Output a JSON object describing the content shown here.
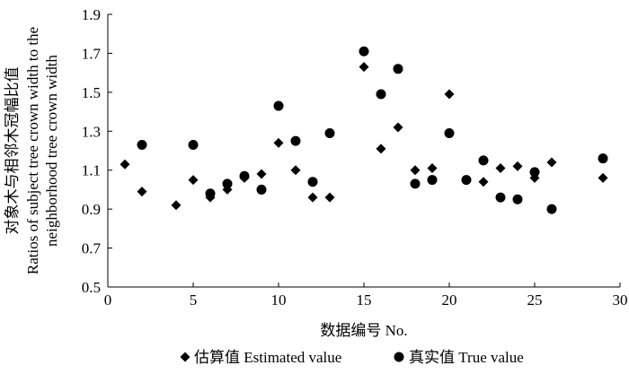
{
  "chart_data": {
    "type": "scatter",
    "xlabel": "数据编号 No.",
    "ylabel_lines": [
      "对象木与相邻木冠幅比值",
      "Ratios of subject tree crown width to the",
      "neighborhood tree crown width"
    ],
    "xlim": [
      0,
      30
    ],
    "ylim": [
      0.5,
      1.9
    ],
    "xticks": [
      "0",
      "5",
      "10",
      "15",
      "20",
      "25",
      "30"
    ],
    "yticks": [
      "0.5",
      "0.7",
      "0.9",
      "1.1",
      "1.3",
      "1.5",
      "1.7",
      "1.9"
    ],
    "grid": false,
    "legend_position": "bottom",
    "series": [
      {
        "name": "估算值  Estimated value",
        "marker": "diamond",
        "x": [
          1,
          2,
          4,
          5,
          6,
          7,
          8,
          9,
          10,
          11,
          12,
          13,
          15,
          16,
          17,
          18,
          19,
          20,
          21,
          22,
          23,
          24,
          25,
          26,
          29
        ],
        "y": [
          1.13,
          0.99,
          0.92,
          1.05,
          0.96,
          1.0,
          1.06,
          1.08,
          1.24,
          1.1,
          0.96,
          0.96,
          1.63,
          1.21,
          1.32,
          1.1,
          1.11,
          1.49,
          1.05,
          1.04,
          1.11,
          1.12,
          1.06,
          1.14,
          1.06
        ]
      },
      {
        "name": "真实值  True value",
        "marker": "circle",
        "x": [
          2,
          5,
          6,
          7,
          8,
          9,
          10,
          11,
          12,
          13,
          15,
          16,
          17,
          18,
          19,
          20,
          21,
          22,
          23,
          24,
          25,
          26,
          29
        ],
        "y": [
          1.23,
          1.23,
          0.98,
          1.03,
          1.07,
          1.0,
          1.43,
          1.25,
          1.04,
          1.29,
          1.71,
          1.49,
          1.62,
          1.03,
          1.05,
          1.29,
          1.05,
          1.15,
          0.96,
          0.95,
          1.09,
          0.9,
          1.16
        ]
      }
    ]
  }
}
